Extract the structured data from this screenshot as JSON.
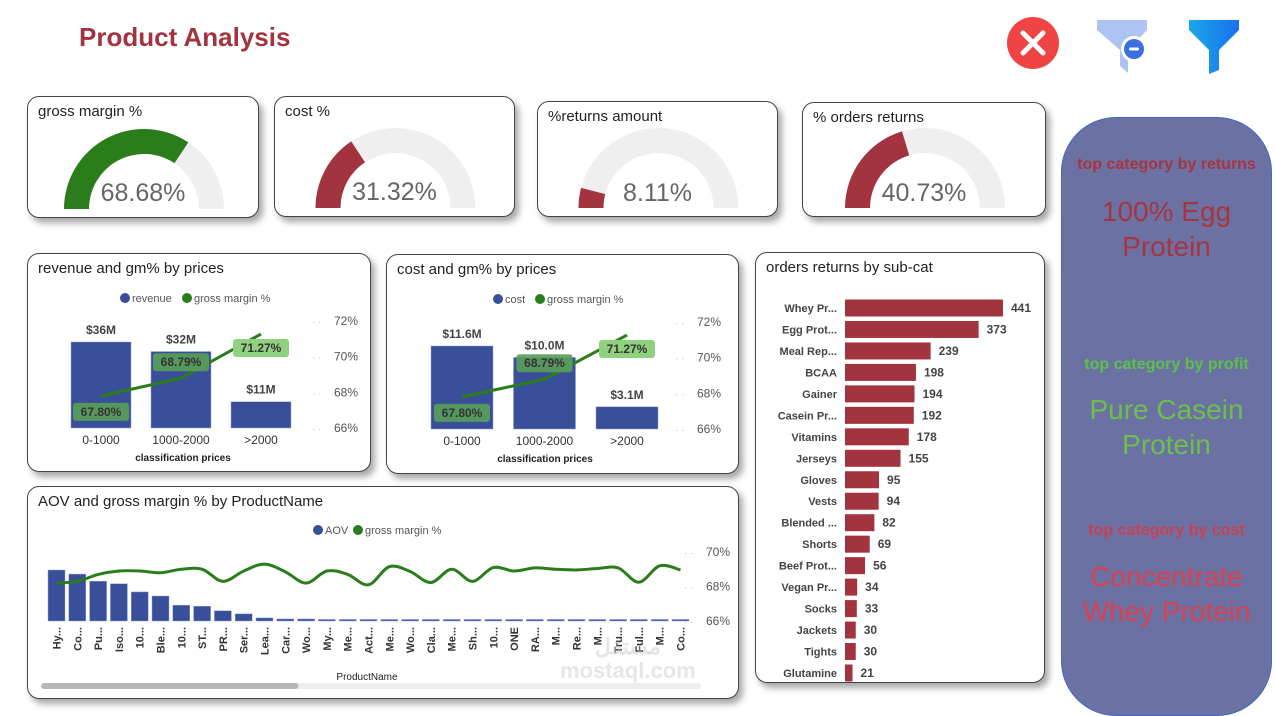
{
  "header": {
    "title": "Product Analysis",
    "icons": [
      "clear-close-icon",
      "clear-filter-icon",
      "filter-icon"
    ]
  },
  "colors": {
    "green": "#2a7d1a",
    "red": "#a3343f",
    "blue": "#3a4f9a",
    "track": "#efefef",
    "panel": "#6b72a3"
  },
  "kpis": [
    {
      "title": "gross margin %",
      "value": "68.68%",
      "fraction": 0.6868,
      "color": "#2a7d1a"
    },
    {
      "title": "cost %",
      "value": "31.32%",
      "fraction": 0.3132,
      "color": "#a3343f"
    },
    {
      "title": "%returns amount",
      "value": "8.11%",
      "fraction": 0.0811,
      "color": "#a3343f"
    },
    {
      "title": "% orders returns",
      "value": "40.73%",
      "fraction": 0.4073,
      "color": "#a3343f"
    }
  ],
  "side_panel": [
    {
      "label": "top category by returns",
      "value": "100% Egg Protein",
      "label_color": "#a8343f",
      "value_color": "#a8343f"
    },
    {
      "label": "top category by profit",
      "value": "Pure Casein Protein",
      "label_color": "#5cc04a",
      "value_color": "#6cc04a"
    },
    {
      "label": "top category by cost",
      "value": "Concentrate Whey Protein",
      "label_color": "#c84050",
      "value_color": "#d94050"
    }
  ],
  "watermark": {
    "line1": "مستقل",
    "line2": "mostaql.com"
  },
  "chart_data": [
    {
      "type": "bar+line",
      "title": "revenue and gm% by prices",
      "categories": [
        "0-1000",
        "1000-2000",
        ">2000"
      ],
      "xlabel": "classification prices",
      "series": [
        {
          "name": "revenue",
          "type": "bar",
          "values": [
            36,
            32,
            11
          ],
          "labels": [
            "$36M",
            "$32M",
            "$11M"
          ],
          "color": "#3a4f9a"
        },
        {
          "name": "gross margin %",
          "type": "line",
          "axis": "right",
          "values": [
            67.8,
            68.79,
            71.27
          ],
          "labels": [
            "67.80%",
            "68.79%",
            "71.27%"
          ],
          "color": "#2a7d1a"
        }
      ],
      "y2_ticks": [
        "72%",
        "70%",
        "68%",
        "66%"
      ],
      "y2lim": [
        66,
        72
      ],
      "legend": "top"
    },
    {
      "type": "bar+line",
      "title": "cost and gm% by prices",
      "categories": [
        "0-1000",
        "1000-2000",
        ">2000"
      ],
      "xlabel": "classification prices",
      "series": [
        {
          "name": "cost",
          "type": "bar",
          "values": [
            11.6,
            10.0,
            3.1
          ],
          "labels": [
            "$11.6M",
            "$10.0M",
            "$3.1M"
          ],
          "color": "#3a4f9a"
        },
        {
          "name": "gross margin %",
          "type": "line",
          "axis": "right",
          "values": [
            67.8,
            68.79,
            71.27
          ],
          "labels": [
            "67.80%",
            "68.79%",
            "71.27%"
          ],
          "color": "#2a7d1a"
        }
      ],
      "y2_ticks": [
        "72%",
        "70%",
        "68%",
        "66%"
      ],
      "y2lim": [
        66,
        72
      ],
      "legend": "top"
    },
    {
      "type": "bar+line",
      "title": "AOV and gross margin % by ProductName",
      "categories": [
        "Hy...",
        "Co...",
        "Pu...",
        "Iso...",
        "10...",
        "Ble...",
        "10...",
        "ST...",
        "PR...",
        "Ser...",
        "Lea...",
        "Car...",
        "Wo...",
        "My...",
        "Me...",
        "Act...",
        "Me...",
        "Wo...",
        "Cla...",
        "Me...",
        "Sh...",
        "10...",
        "ONE",
        "RA...",
        "M...",
        "Re...",
        "M...",
        "Tru...",
        "Ful...",
        "M...",
        "Co..."
      ],
      "xlabel": "ProductName",
      "series": [
        {
          "name": "AOV",
          "type": "bar",
          "values": [
            100,
            92,
            78,
            73,
            57,
            49,
            31,
            29,
            20,
            14,
            6,
            4,
            4,
            3,
            3,
            3,
            3,
            3,
            3,
            3,
            3,
            3,
            3,
            3,
            3,
            3,
            3,
            3,
            3,
            3,
            3
          ],
          "color": "#3a4f9a"
        },
        {
          "name": "gross margin %",
          "type": "line",
          "axis": "right",
          "values": [
            68.2,
            68.3,
            68.7,
            68.9,
            68.9,
            68.8,
            69.0,
            69.0,
            68.3,
            68.9,
            69.3,
            68.85,
            68.2,
            68.9,
            68.7,
            68.1,
            69.15,
            68.87,
            68.23,
            69.0,
            68.3,
            69.1,
            68.9,
            69.08,
            69.0,
            68.96,
            69.04,
            69.08,
            68.25,
            69.2,
            68.96
          ],
          "color": "#2a7d1a"
        }
      ],
      "y2_ticks": [
        "70%",
        "68%",
        "66%"
      ],
      "y2lim": [
        66,
        70
      ],
      "legend": "top",
      "scrollbar_position": 0.39
    },
    {
      "type": "bar",
      "orientation": "horizontal",
      "title": "orders returns by sub-cat",
      "categories": [
        "Whey Pr...",
        "Egg Prot...",
        "Meal Rep...",
        "BCAA",
        "Gainer",
        "Casein Pr...",
        "Vitamins",
        "Jerseys",
        "Gloves",
        "Vests",
        "Blended ...",
        "Shorts",
        "Beef Prot...",
        "Vegan Pr...",
        "Socks",
        "Jackets",
        "Tights",
        "Glutamine"
      ],
      "values": [
        441,
        373,
        239,
        198,
        194,
        192,
        178,
        155,
        95,
        94,
        82,
        69,
        56,
        34,
        33,
        30,
        30,
        21
      ],
      "color": "#a3343f"
    }
  ]
}
